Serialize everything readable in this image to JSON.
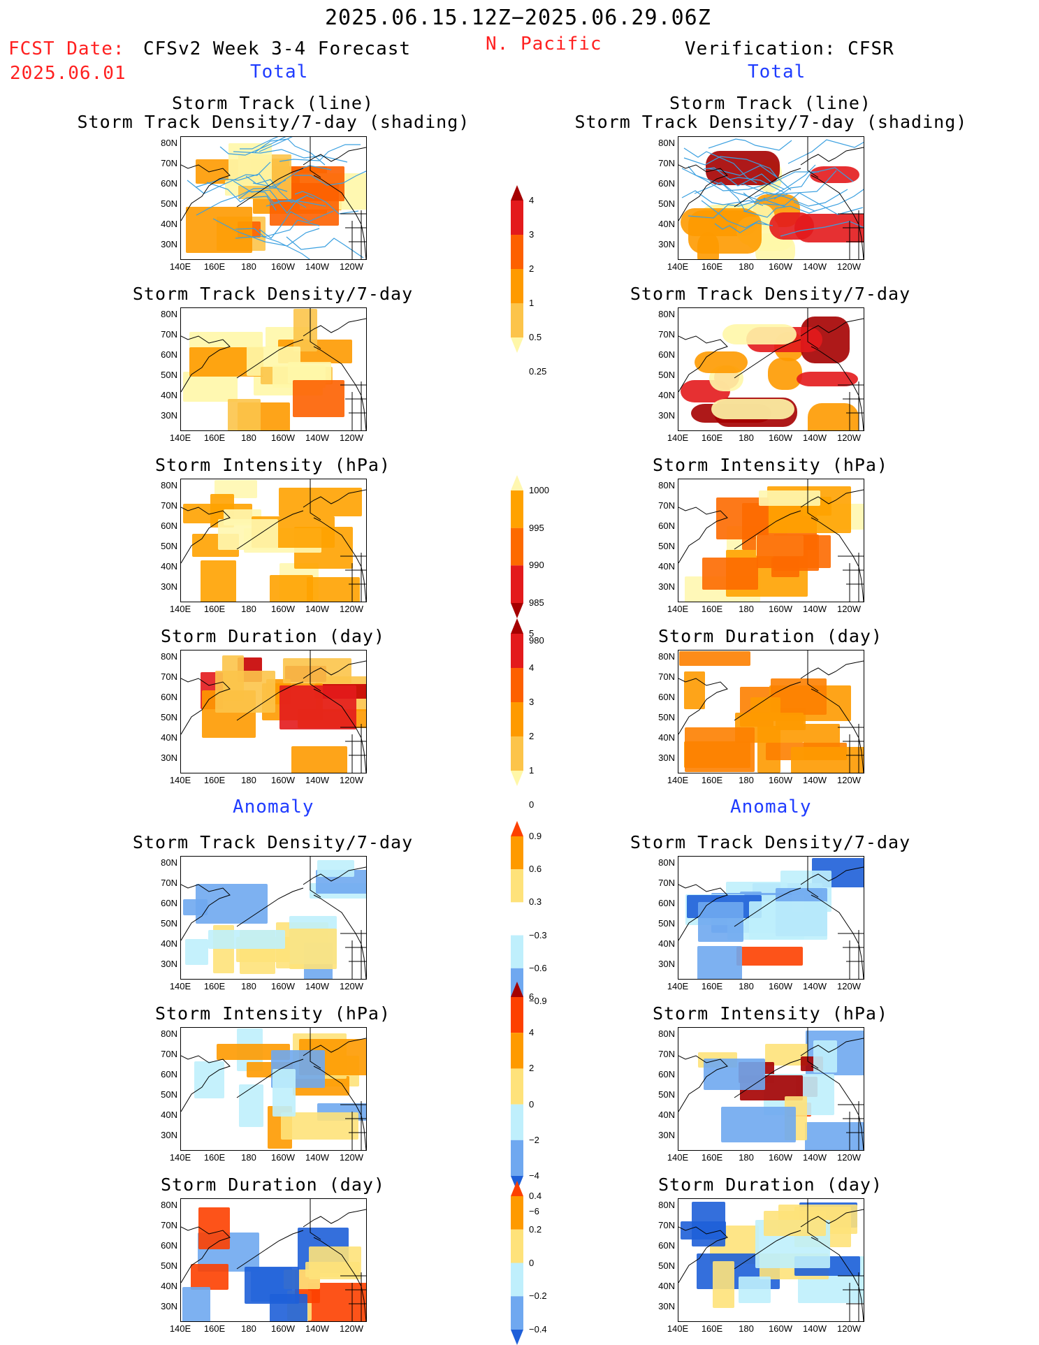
{
  "header": {
    "period": "2025.06.15.12Z−2025.06.29.06Z",
    "fcst_label": "FCST Date:",
    "fcst_date": "2025.06.01",
    "model": "CFSv2 Week 3-4 Forecast",
    "region": "N. Pacific",
    "verification": "Verification: CFSR"
  },
  "sections": {
    "total": "Total",
    "anomaly": "Anomaly"
  },
  "panel_titles": {
    "track_line": "Storm Track (line)",
    "track_density_shading": "Storm Track Density/7-day (shading)",
    "track_density": "Storm Track Density/7-day",
    "intensity": "Storm Intensity (hPa)",
    "duration": "Storm Duration (day)"
  },
  "axes": {
    "lat": [
      "80N",
      "70N",
      "60N",
      "50N",
      "40N",
      "30N"
    ],
    "lon": [
      "140E",
      "160E",
      "180",
      "160W",
      "140W",
      "120W"
    ]
  },
  "colorbars": [
    {
      "id": "density_total",
      "labels": [
        "4",
        "3",
        "2",
        "1",
        "0.5",
        "0.25"
      ],
      "colors": [
        "#a50000",
        "#e31a1c",
        "#fd6000",
        "#fe9a00",
        "#fcc44a",
        "#fff7a8"
      ]
    },
    {
      "id": "intensity_total",
      "labels": [
        "1000",
        "995",
        "990",
        "985",
        "980"
      ],
      "colors": [
        "#fff7b0",
        "#ffa200",
        "#fd6a00",
        "#e31a1c",
        "#a50000"
      ]
    },
    {
      "id": "duration_total",
      "labels": [
        "5",
        "4",
        "3",
        "2",
        "1",
        "0"
      ],
      "colors": [
        "#a50000",
        "#e31a1c",
        "#fd6000",
        "#fe9a00",
        "#fcc44a",
        "#fff7a8"
      ]
    },
    {
      "id": "density_anom",
      "labels": [
        "0.9",
        "0.6",
        "0.3",
        "−0.3",
        "−0.6",
        "−0.9"
      ],
      "colors": [
        "#fd4000",
        "#fe9a00",
        "#fee27a",
        "#ffffff",
        "#bfeffc",
        "#6fa8f0",
        "#1e5fd8"
      ]
    },
    {
      "id": "intensity_anom",
      "labels": [
        "6",
        "4",
        "2",
        "0",
        "−2",
        "−4",
        "−6"
      ],
      "colors": [
        "#a50000",
        "#fd4000",
        "#fe9a00",
        "#fee27a",
        "#bfeffc",
        "#6fa8f0",
        "#1e5fd8"
      ]
    },
    {
      "id": "duration_anom",
      "labels": [
        "0.4",
        "0.2",
        "0",
        "−0.2",
        "−0.4"
      ],
      "colors": [
        "#fd4000",
        "#fe9a00",
        "#fee27a",
        "#bfeffc",
        "#6fa8f0",
        "#1e5fd8"
      ]
    }
  ]
}
